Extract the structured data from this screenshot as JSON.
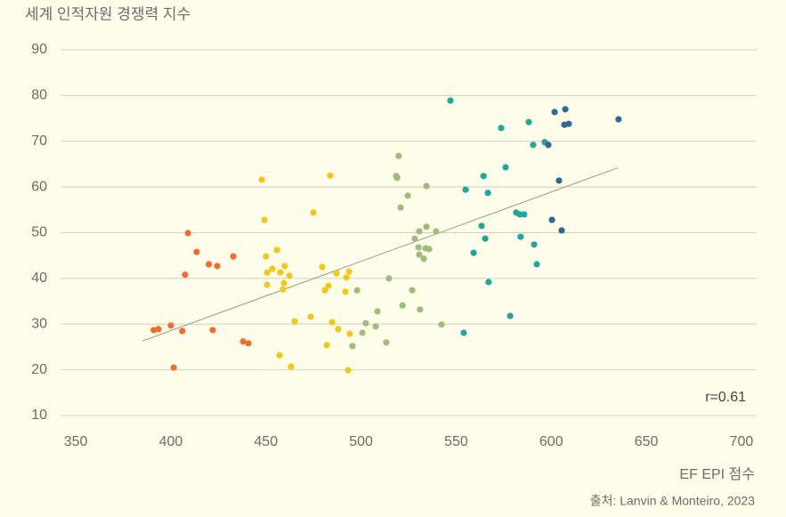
{
  "chart_data": {
    "type": "scatter",
    "title": "세계 인적자원 경쟁력 지수",
    "x_label": "EF EPI 점수",
    "source": "출처: Lanvin & Monteiro, 2023",
    "annotation": "r=0.61",
    "xlim": [
      342,
      708
    ],
    "xticks": [
      350,
      400,
      450,
      500,
      550,
      600,
      650,
      700
    ],
    "ylim": [
      10,
      90
    ],
    "yticks": [
      10,
      20,
      30,
      40,
      50,
      60,
      70,
      80,
      90
    ],
    "grid": true,
    "trendline": {
      "color": "#9a9a8a",
      "x": [
        385,
        635
      ],
      "y": [
        26.3,
        64.2
      ]
    },
    "series": [
      {
        "color": "#f26b2e",
        "x": [
          391,
          393.5,
          400,
          406,
          401.5,
          407.5,
          409,
          413.6,
          420,
          424.4,
          422,
          432.8,
          438,
          440.8
        ],
        "values": [
          28.7,
          28.9,
          29.7,
          28.5,
          20.5,
          40.8,
          49.9,
          45.8,
          43.1,
          42.7,
          28.7,
          44.8,
          26.2,
          25.8
        ]
      },
      {
        "color": "#f2c719",
        "x": [
          447.8,
          449.2,
          450,
          450.6,
          450.6,
          453.4,
          455.8,
          457.6,
          459.9,
          459.5,
          459,
          462.3,
          457.2,
          463.2,
          465.1,
          473.5,
          474.9,
          483.8,
          479.6,
          481,
          482.9,
          482,
          484.8,
          487.1,
          488,
          491.8,
          492.3,
          493.7,
          494.1,
          493.2
        ],
        "values": [
          61.6,
          52.8,
          44.8,
          41.3,
          38.6,
          42.1,
          46.2,
          41.3,
          42.7,
          39,
          37.6,
          40.6,
          23.2,
          20.7,
          30.6,
          31.6,
          54.4,
          62.5,
          42.5,
          37.4,
          38.4,
          25.4,
          30.4,
          41.1,
          28.9,
          37.1,
          40.2,
          41.5,
          27.9,
          19.9
        ]
      },
      {
        "color": "#9fbc7c",
        "x": [
          495.5,
          497.9,
          500.7,
          502.5,
          507.7,
          508.6,
          513.3,
          514.7,
          518.5,
          519,
          519.8,
          520.8,
          521.8,
          524.6,
          526.9,
          528.3,
          530.2,
          530.6,
          530.6,
          531,
          533,
          533.9,
          534.4,
          534.4,
          535.8,
          539.5,
          542.3
        ],
        "values": [
          25.2,
          37.4,
          28.1,
          30.2,
          29.5,
          32.8,
          26,
          40,
          62.4,
          62,
          66.8,
          55.5,
          34.1,
          58.1,
          37.4,
          48.7,
          46.8,
          50.3,
          45.2,
          33.2,
          44.3,
          46.6,
          51.3,
          60.2,
          46.4,
          50.3,
          29.9
        ]
      },
      {
        "color": "#1fa899",
        "x": [
          547,
          554,
          555,
          559.2,
          563.4,
          564.4,
          565.3,
          566.7,
          567.1,
          573.7,
          576,
          578.4,
          581.6,
          583.5,
          585.8,
          583.9,
          588.2,
          590.5,
          591,
          592.4,
          596.6
        ],
        "values": [
          78.9,
          28.1,
          59.4,
          45.6,
          51.5,
          62.4,
          48.7,
          58.7,
          39.2,
          72.9,
          64.3,
          31.8,
          54.4,
          54,
          54,
          49.1,
          74.2,
          69.2,
          47.4,
          43.1,
          69.8
        ]
      },
      {
        "color": "#2d6896",
        "x": [
          598.5,
          600.4,
          601.8,
          604.1,
          605.5,
          606.9,
          607.4,
          609.2,
          635.4
        ],
        "values": [
          69.2,
          52.8,
          76.4,
          61.4,
          50.5,
          73.6,
          77,
          73.8,
          74.8
        ]
      }
    ]
  }
}
